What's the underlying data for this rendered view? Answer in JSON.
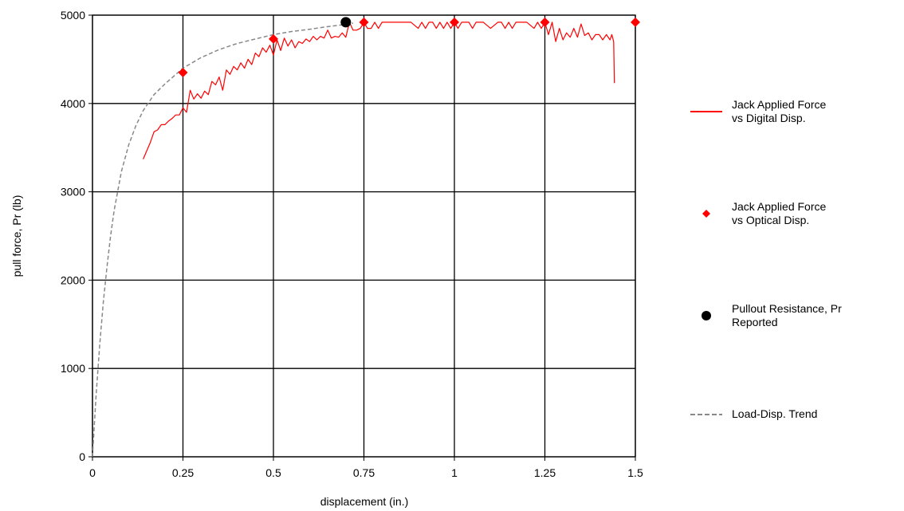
{
  "chart_data": {
    "type": "line",
    "title": "",
    "xlabel": "displacement (in.)",
    "ylabel": "pull force, Pr (lb)",
    "xlim": [
      0,
      1.5
    ],
    "ylim": [
      0,
      5000
    ],
    "xticks": [
      0,
      0.25,
      0.5,
      0.75,
      1,
      1.25,
      1.5
    ],
    "xtick_labels": [
      "0",
      "0.25",
      "0.5",
      "0.75",
      "1",
      "1.25",
      "1.5"
    ],
    "yticks": [
      0,
      1000,
      2000,
      3000,
      4000,
      5000
    ],
    "ytick_labels": [
      "0",
      "1000",
      "2000",
      "3000",
      "4000",
      "5000"
    ],
    "grid": true,
    "legend_position": "right",
    "series": [
      {
        "name": "Jack Applied Force vs Digital Disp.",
        "kind": "line",
        "color": "#ff0000",
        "x": [
          0.14,
          0.16,
          0.17,
          0.18,
          0.19,
          0.2,
          0.21,
          0.22,
          0.23,
          0.24,
          0.25,
          0.26,
          0.27,
          0.28,
          0.29,
          0.3,
          0.31,
          0.32,
          0.33,
          0.34,
          0.35,
          0.36,
          0.37,
          0.38,
          0.39,
          0.4,
          0.41,
          0.42,
          0.43,
          0.44,
          0.45,
          0.46,
          0.47,
          0.48,
          0.49,
          0.5,
          0.51,
          0.52,
          0.53,
          0.54,
          0.55,
          0.56,
          0.57,
          0.58,
          0.59,
          0.6,
          0.61,
          0.62,
          0.63,
          0.64,
          0.65,
          0.66,
          0.67,
          0.68,
          0.69,
          0.7,
          0.71,
          0.72,
          0.73,
          0.74,
          0.75,
          0.76,
          0.77,
          0.78,
          0.79,
          0.8,
          0.82,
          0.84,
          0.86,
          0.88,
          0.9,
          0.91,
          0.92,
          0.93,
          0.94,
          0.95,
          0.96,
          0.97,
          0.98,
          0.99,
          1.0,
          1.01,
          1.02,
          1.03,
          1.04,
          1.05,
          1.06,
          1.08,
          1.1,
          1.12,
          1.13,
          1.14,
          1.15,
          1.16,
          1.17,
          1.18,
          1.2,
          1.22,
          1.23,
          1.24,
          1.25,
          1.26,
          1.27,
          1.28,
          1.29,
          1.3,
          1.31,
          1.32,
          1.33,
          1.34,
          1.35,
          1.36,
          1.37,
          1.38,
          1.39,
          1.4,
          1.41,
          1.42,
          1.43,
          1.435,
          1.44,
          1.442
        ],
        "y": [
          3370,
          3560,
          3680,
          3700,
          3760,
          3760,
          3800,
          3830,
          3870,
          3870,
          3950,
          3900,
          4150,
          4050,
          4110,
          4060,
          4140,
          4100,
          4250,
          4210,
          4300,
          4150,
          4380,
          4330,
          4420,
          4380,
          4460,
          4400,
          4500,
          4440,
          4570,
          4530,
          4630,
          4580,
          4660,
          4550,
          4720,
          4600,
          4740,
          4650,
          4720,
          4630,
          4700,
          4680,
          4730,
          4700,
          4760,
          4720,
          4760,
          4740,
          4830,
          4740,
          4760,
          4750,
          4800,
          4750,
          4920,
          4830,
          4830,
          4850,
          4920,
          4850,
          4850,
          4920,
          4850,
          4920,
          4920,
          4920,
          4920,
          4920,
          4850,
          4920,
          4850,
          4920,
          4920,
          4850,
          4920,
          4850,
          4920,
          4850,
          4920,
          4850,
          4920,
          4920,
          4920,
          4850,
          4920,
          4920,
          4850,
          4920,
          4920,
          4850,
          4920,
          4850,
          4920,
          4920,
          4920,
          4850,
          4920,
          4850,
          4920,
          4780,
          4920,
          4700,
          4850,
          4720,
          4800,
          4750,
          4850,
          4750,
          4900,
          4770,
          4800,
          4720,
          4780,
          4780,
          4720,
          4780,
          4720,
          4780,
          4700,
          4230
        ]
      },
      {
        "name": "Jack Applied Force vs Optical Disp.",
        "kind": "scatter",
        "marker": "diamond",
        "color": "#ff0000",
        "x": [
          0.25,
          0.5,
          0.75,
          1.0,
          1.25,
          1.5
        ],
        "y": [
          4350,
          4730,
          4920,
          4920,
          4920,
          4920
        ]
      },
      {
        "name": "Pullout Resistance, Pr Reported",
        "kind": "scatter",
        "marker": "circle",
        "color": "#000000",
        "x": [
          0.7
        ],
        "y": [
          4920
        ]
      },
      {
        "name": "Load-Disp. Trend",
        "kind": "line",
        "dashed": true,
        "color": "#888888",
        "x": [
          0,
          0.005,
          0.01,
          0.02,
          0.03,
          0.04,
          0.05,
          0.06,
          0.08,
          0.1,
          0.12,
          0.14,
          0.17,
          0.2,
          0.25,
          0.3,
          0.35,
          0.4,
          0.45,
          0.5,
          0.55,
          0.6,
          0.65,
          0.7,
          0.72
        ],
        "y": [
          0,
          360,
          690,
          1270,
          1750,
          2150,
          2500,
          2790,
          3230,
          3530,
          3750,
          3920,
          4100,
          4220,
          4400,
          4520,
          4610,
          4680,
          4730,
          4780,
          4815,
          4840,
          4870,
          4895,
          4910
        ]
      }
    ]
  },
  "legend": [
    {
      "lines": [
        "Jack Applied Force",
        "vs Digital Disp."
      ],
      "symbol": "line",
      "color": "#ff0000"
    },
    {
      "lines": [
        "Jack Applied Force",
        "vs Optical Disp."
      ],
      "symbol": "diamond",
      "color": "#ff0000"
    },
    {
      "lines": [
        "Pullout Resistance, Pr",
        "Reported"
      ],
      "symbol": "circle",
      "color": "#000000"
    },
    {
      "lines": [
        "Load-Disp. Trend"
      ],
      "symbol": "dashed-line",
      "color": "#888888"
    }
  ]
}
